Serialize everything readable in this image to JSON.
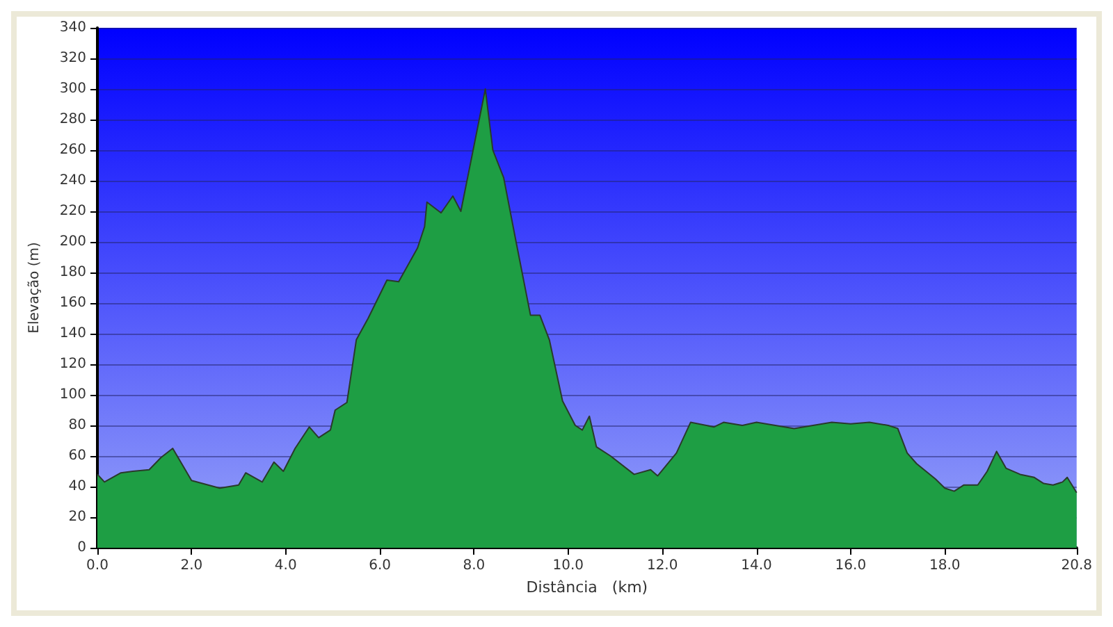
{
  "chart_data": {
    "type": "area",
    "xlabel": "Distância   (km)",
    "ylabel": "Elevação (m)",
    "xlim": [
      0,
      20.8
    ],
    "ylim": [
      0,
      340
    ],
    "xticks": [
      {
        "value": 0,
        "label": "0.0"
      },
      {
        "value": 2,
        "label": "2.0"
      },
      {
        "value": 4,
        "label": "4.0"
      },
      {
        "value": 6,
        "label": "6.0"
      },
      {
        "value": 8,
        "label": "8.0"
      },
      {
        "value": 10,
        "label": "10.0"
      },
      {
        "value": 12,
        "label": "12.0"
      },
      {
        "value": 14,
        "label": "14.0"
      },
      {
        "value": 16,
        "label": "16.0"
      },
      {
        "value": 18,
        "label": "18.0"
      },
      {
        "value": 20.8,
        "label": "20.8"
      }
    ],
    "yticks": [
      0,
      20,
      40,
      60,
      80,
      100,
      120,
      140,
      160,
      180,
      200,
      220,
      240,
      260,
      280,
      300,
      320,
      340
    ],
    "grid": "y",
    "series": [
      {
        "color": "#1e9e44",
        "x": [
          0,
          0.15,
          0.5,
          0.75,
          1.1,
          1.35,
          1.6,
          2.0,
          2.6,
          3.0,
          3.15,
          3.5,
          3.75,
          3.95,
          4.2,
          4.5,
          4.7,
          4.95,
          5.05,
          5.3,
          5.5,
          5.75,
          6.15,
          6.4,
          6.8,
          6.95,
          7.0,
          7.3,
          7.55,
          7.72,
          8.0,
          8.24,
          8.4,
          8.63,
          8.9,
          9.2,
          9.4,
          9.6,
          9.88,
          10.15,
          10.3,
          10.45,
          10.6,
          10.9,
          11.4,
          11.75,
          11.9,
          12.3,
          12.6,
          13.1,
          13.3,
          13.7,
          14.0,
          14.4,
          14.8,
          15.2,
          15.6,
          16.0,
          16.4,
          16.8,
          17.0,
          17.2,
          17.4,
          17.6,
          17.8,
          18.0,
          18.2,
          18.4,
          18.7,
          18.9,
          19.1,
          19.3,
          19.6,
          19.9,
          20.1,
          20.3,
          20.5,
          20.6,
          20.8
        ],
        "values": [
          48,
          43,
          49,
          50,
          51,
          59,
          65,
          44,
          39,
          41,
          49,
          43,
          56,
          50,
          65,
          79,
          72,
          77,
          90,
          95,
          136,
          150,
          175,
          174,
          196,
          210,
          226,
          219,
          230,
          220,
          263,
          300,
          260,
          242,
          199,
          152,
          152,
          136,
          96,
          80,
          77,
          86,
          66,
          60,
          48,
          51,
          47,
          62,
          82,
          79,
          82,
          80,
          82,
          80,
          78,
          80,
          82,
          81,
          82,
          80,
          78,
          62,
          55,
          50,
          45,
          39,
          37,
          41,
          41,
          50,
          63,
          52,
          48,
          46,
          42,
          41,
          43,
          46,
          36
        ]
      }
    ]
  }
}
